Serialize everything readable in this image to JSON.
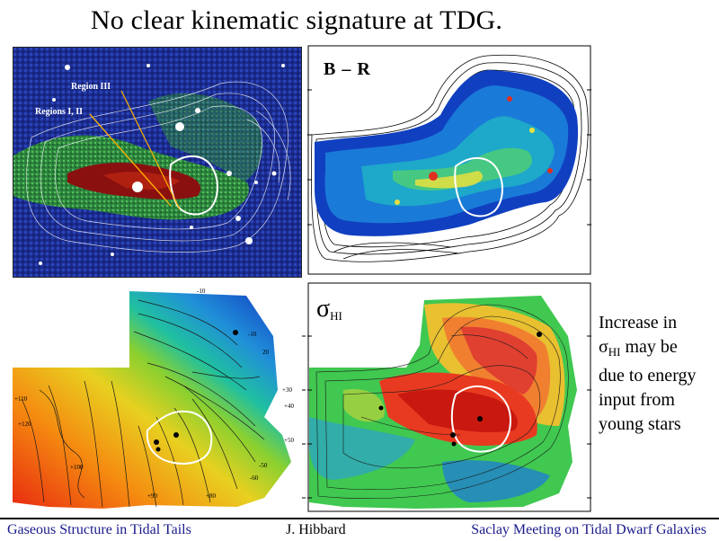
{
  "slide": {
    "title": "No clear kinematic signature at TDG."
  },
  "panels": {
    "optical": {
      "region_labels": [
        "Region III",
        "Regions I, II"
      ]
    },
    "br": {
      "label": "B – R"
    },
    "velocity": {
      "contour_labels": [
        "-10",
        "-10",
        "20",
        "+30",
        "+40",
        "+50",
        "-50",
        "-60",
        "+110",
        "+120",
        "+100",
        "+90",
        "+80"
      ]
    },
    "sigma": {
      "label_main": "σ",
      "label_sub": "HI"
    }
  },
  "side_note": {
    "line1": "Increase in",
    "sigma_symbol": "σ",
    "sigma_sub": "HI",
    "line2_rest": " may be",
    "line3": "due to energy",
    "line4": "input from",
    "line5": "young stars"
  },
  "footer": {
    "left": "Gaseous Structure in Tidal Tails",
    "middle": "J. Hibbard",
    "right": "Saclay Meeting on Tidal Dwarf Galaxies"
  },
  "colors": {
    "footer_text": "#1a1a8c",
    "accent_blue": "#1a1a8c"
  }
}
